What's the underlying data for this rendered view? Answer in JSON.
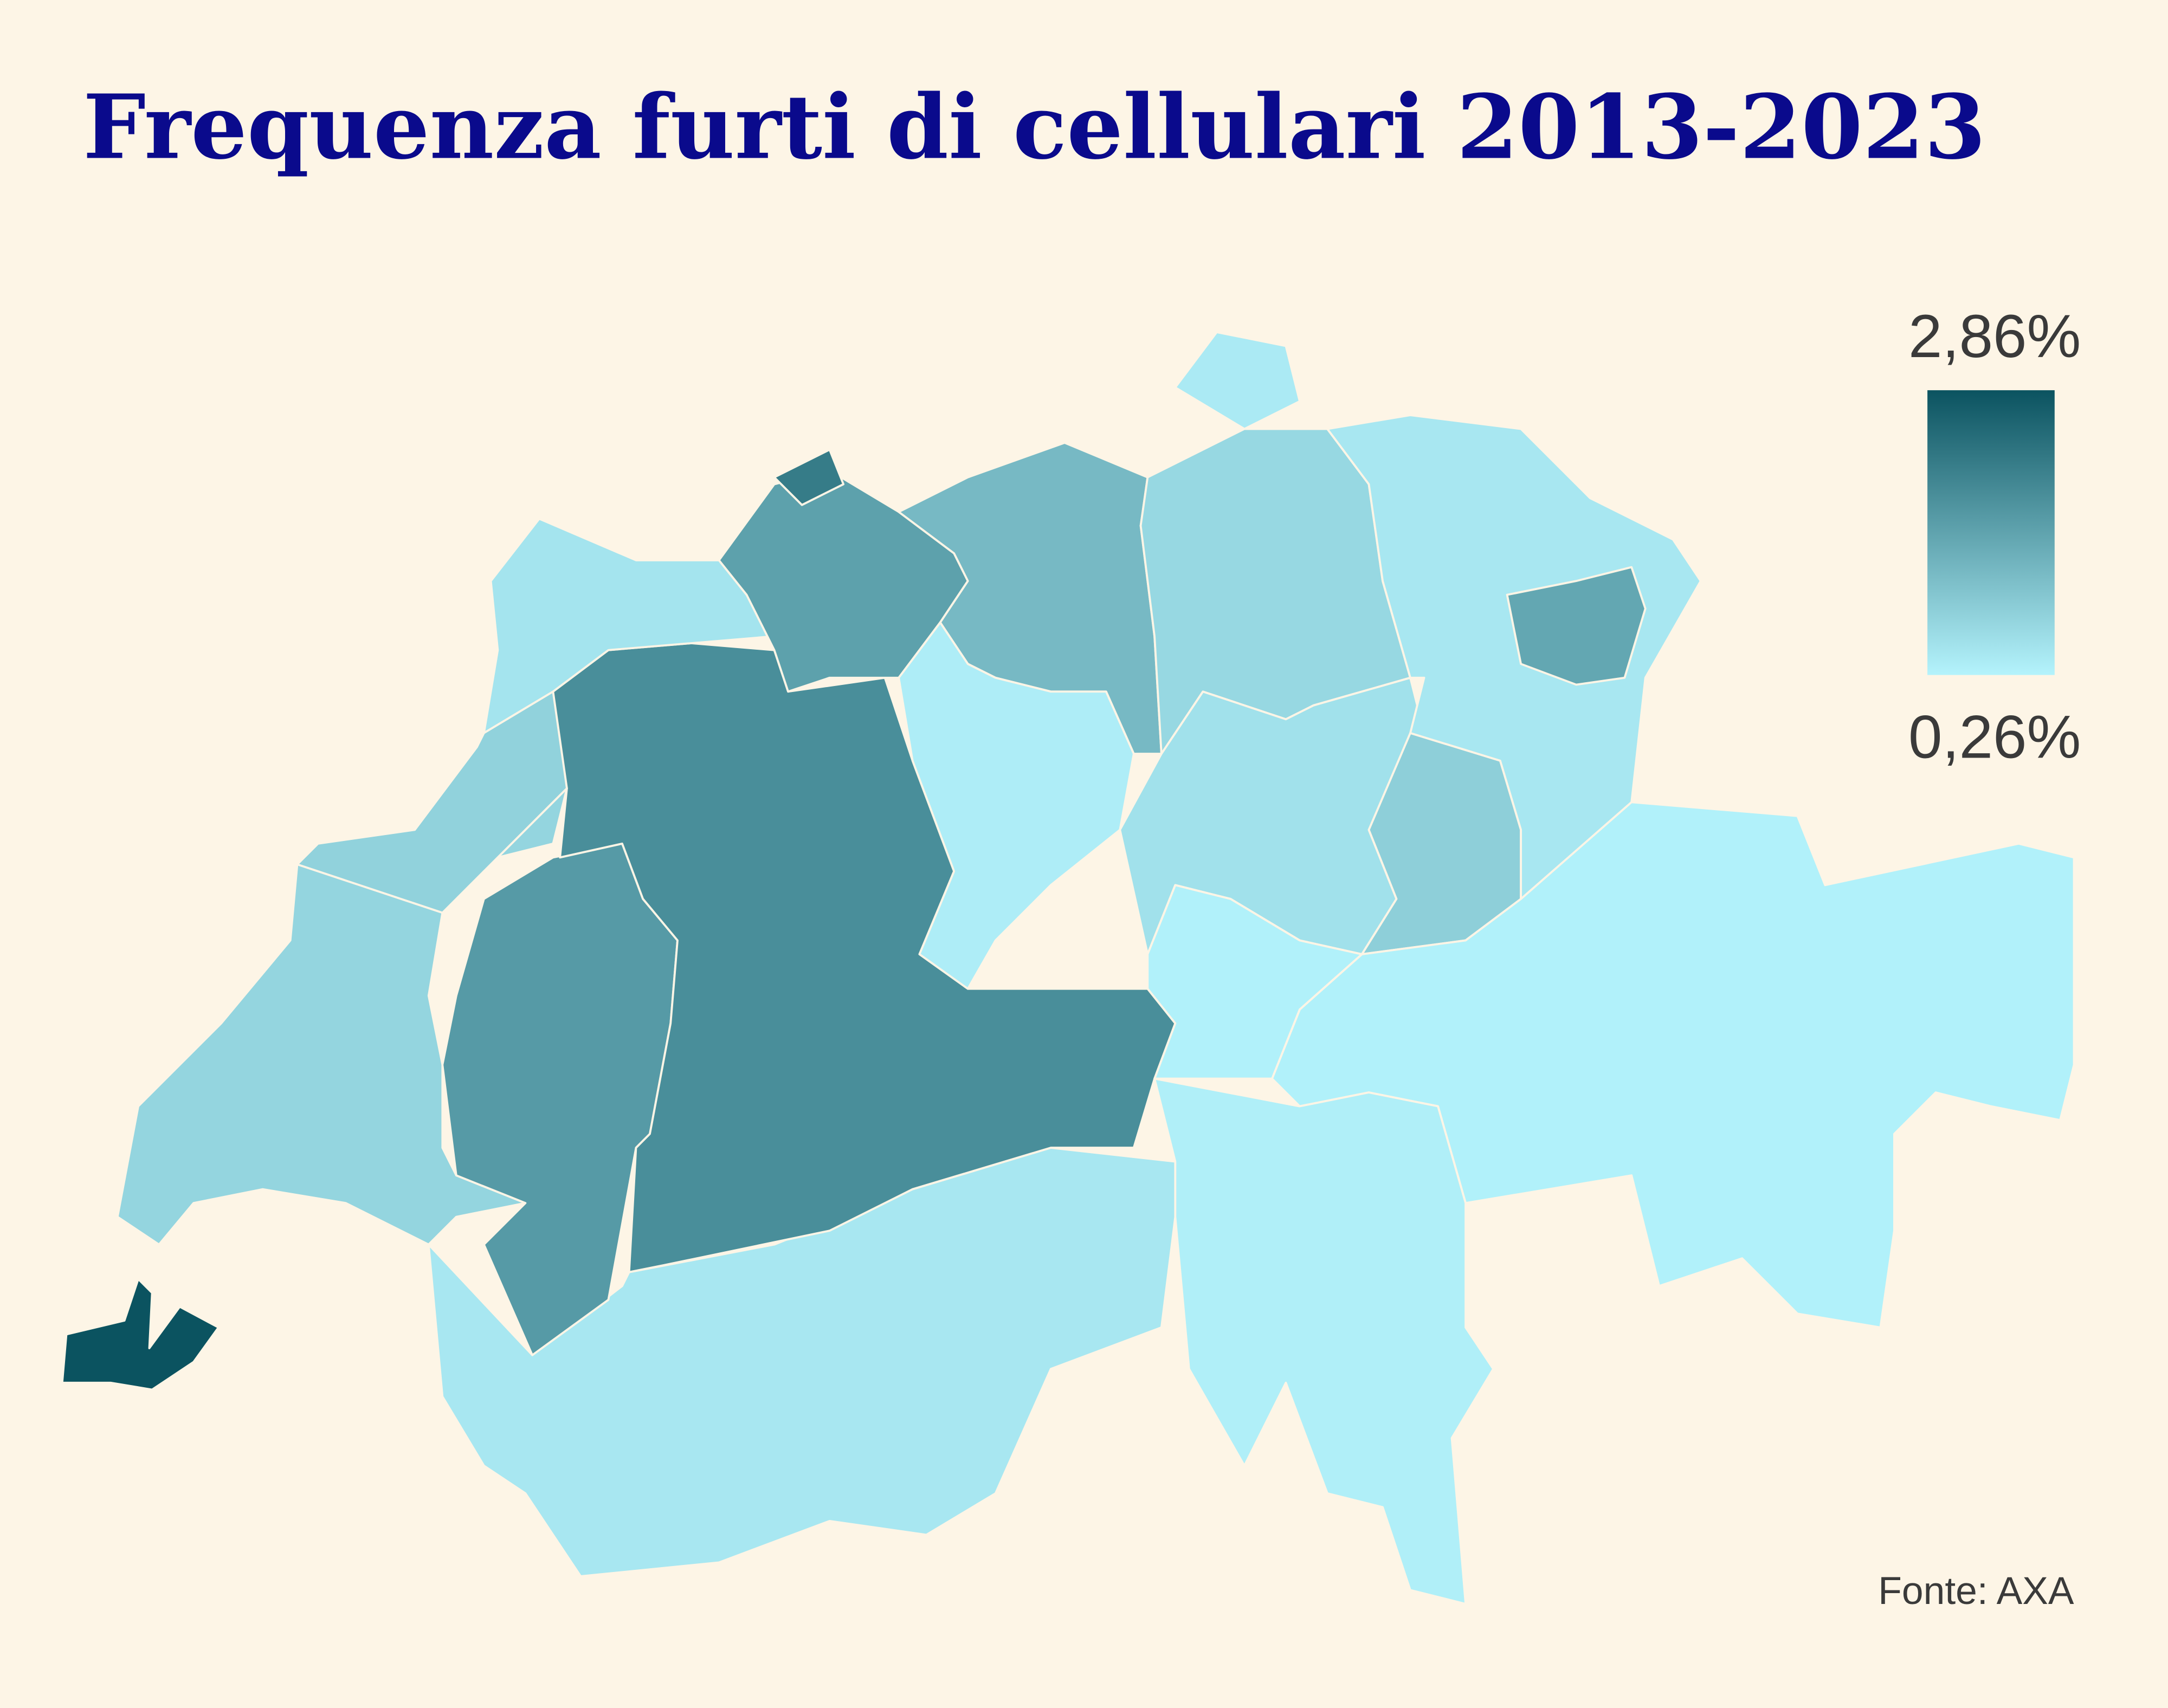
{
  "chart_data": {
    "type": "choropleth",
    "title": "Frequenza furti di cellulari 2013-2023",
    "legend": {
      "max": {
        "value": 2.86,
        "label": "2,86%"
      },
      "min": {
        "value": 0.26,
        "label": "0,26%"
      }
    },
    "color_min": "#b4f3fc",
    "color_max": "#0b5360",
    "values": [
      2.86,
      0.75,
      0.45,
      1.7,
      1.9,
      0.5,
      0.8,
      1.6,
      2.2,
      1.2,
      0.35,
      0.7,
      0.55,
      0.85,
      0.45,
      1.5,
      0.3,
      0.32,
      0.3,
      0.4
    ],
    "source": "Fonte: AXA"
  }
}
